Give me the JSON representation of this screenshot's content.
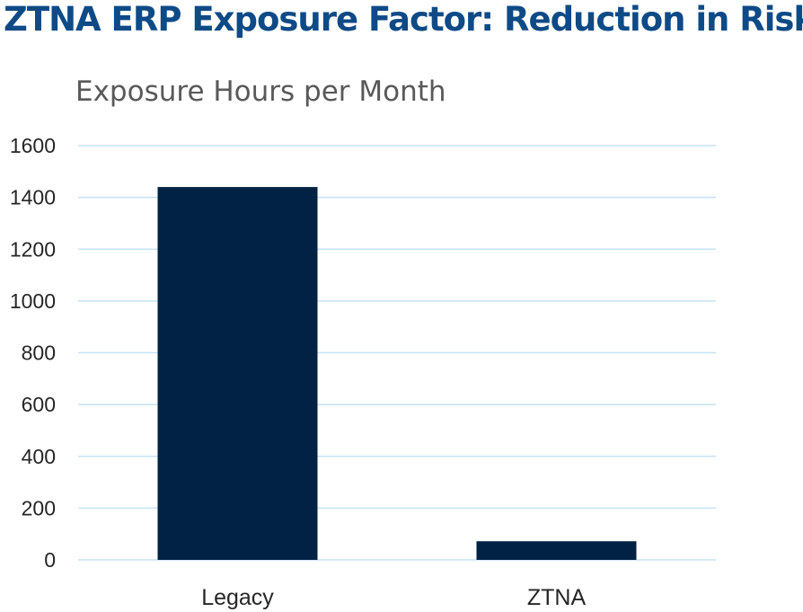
{
  "slide": {
    "title": "ZTNA ERP Exposure Factor: Reduction in Risk"
  },
  "colors": {
    "title": "#0e4a86",
    "bar": "#012245",
    "gridline": "#c5e3f4"
  },
  "chart_data": {
    "type": "bar",
    "title": "Exposure Hours per Month",
    "categories": [
      "Legacy",
      "ZTNA"
    ],
    "values": [
      1440,
      72
    ],
    "xlabel": "",
    "ylabel": "",
    "ylim": [
      0,
      1600
    ],
    "yticks": [
      0,
      200,
      400,
      600,
      800,
      1000,
      1200,
      1400,
      1600
    ],
    "grid": true,
    "legend": "none"
  }
}
